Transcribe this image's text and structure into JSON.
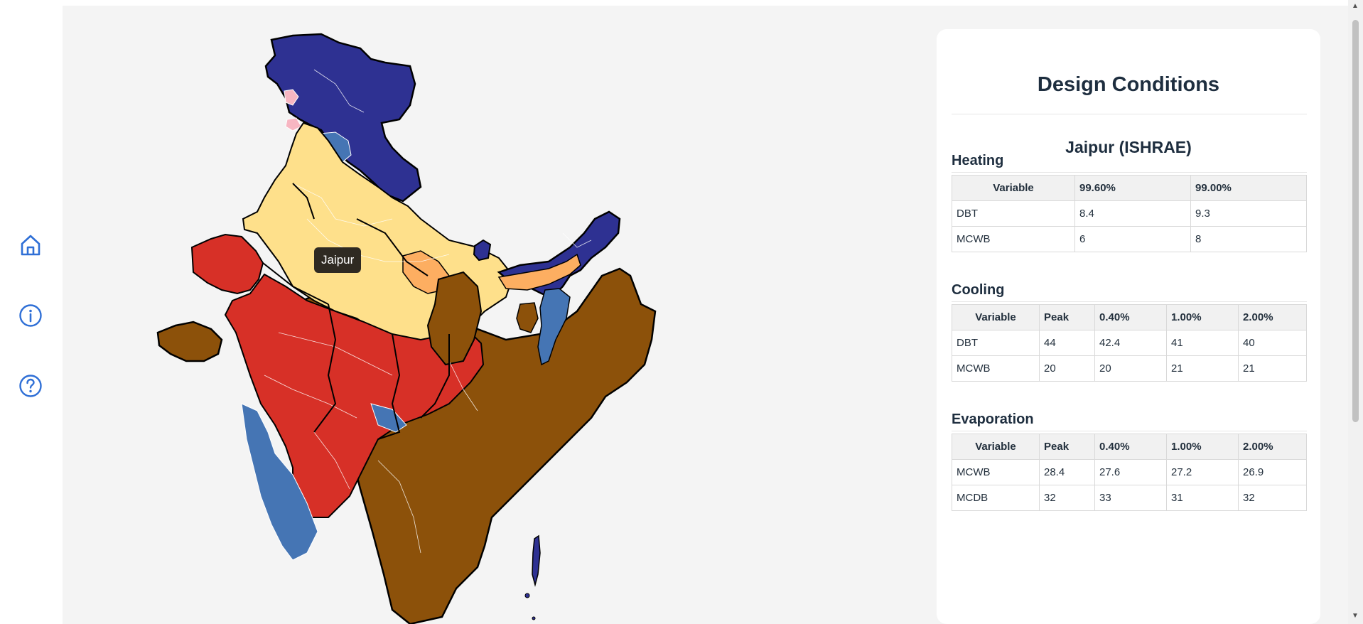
{
  "sidebar": {
    "items": [
      {
        "icon": "home-icon"
      },
      {
        "icon": "info-icon"
      },
      {
        "icon": "help-icon"
      }
    ],
    "accent_color": "#2f6fd6"
  },
  "map": {
    "tooltip": "Jaipur",
    "zone_colors": {
      "dark_blue": "#2e3192",
      "mid_blue": "#4575b4",
      "light_yellow": "#fee08b",
      "orange": "#fdae61",
      "red": "#d73027",
      "brown": "#8c510a",
      "pink": "#f7b6c2"
    }
  },
  "panel": {
    "title": "Design Conditions",
    "city": "Jaipur (ISHRAE)",
    "heating": {
      "title": "Heating",
      "headers": [
        "Variable",
        "99.60%",
        "99.00%"
      ],
      "rows": [
        [
          "DBT",
          "8.4",
          "9.3"
        ],
        [
          "MCWB",
          "6",
          "8"
        ]
      ]
    },
    "cooling": {
      "title": "Cooling",
      "headers": [
        "Variable",
        "Peak",
        "0.40%",
        "1.00%",
        "2.00%"
      ],
      "rows": [
        [
          "DBT",
          "44",
          "42.4",
          "41",
          "40"
        ],
        [
          "MCWB",
          "20",
          "20",
          "21",
          "21"
        ]
      ]
    },
    "evaporation": {
      "title": "Evaporation",
      "headers": [
        "Variable",
        "Peak",
        "0.40%",
        "1.00%",
        "2.00%"
      ],
      "rows": [
        [
          "MCWB",
          "28.4",
          "27.6",
          "27.2",
          "26.9"
        ],
        [
          "MCDB",
          "32",
          "33",
          "31",
          "32"
        ]
      ]
    }
  }
}
